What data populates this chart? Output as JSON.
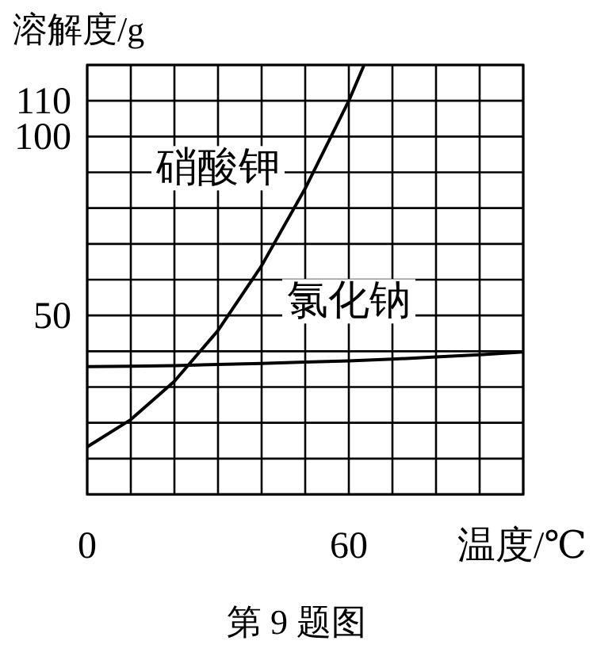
{
  "chart_data": {
    "type": "line",
    "xlabel": "温度/℃",
    "ylabel": "溶解度/g",
    "xlim": [
      0,
      100
    ],
    "ylim": [
      0,
      120
    ],
    "xticks": [
      0,
      {
        "value": 10,
        "label": null
      },
      {
        "value": 20,
        "label": null
      },
      {
        "value": 30,
        "label": null
      },
      {
        "value": 40,
        "label": null
      },
      {
        "value": 50,
        "label": null
      },
      60,
      {
        "value": 70,
        "label": null
      },
      {
        "value": 80,
        "label": null
      },
      {
        "value": 90,
        "label": null
      },
      {
        "value": 100,
        "label": null
      }
    ],
    "yticks": [
      {
        "value": 0,
        "label": null
      },
      {
        "value": 10,
        "label": null
      },
      {
        "value": 20,
        "label": null
      },
      {
        "value": 30,
        "label": null
      },
      {
        "value": 40,
        "label": null
      },
      50,
      {
        "value": 60,
        "label": null
      },
      {
        "value": 70,
        "label": null
      },
      {
        "value": 80,
        "label": null
      },
      {
        "value": 90,
        "label": null
      },
      100,
      110,
      {
        "value": 120,
        "label": null
      }
    ],
    "grid": true,
    "marker": "none",
    "line_style": "solid",
    "series": [
      {
        "name": "硝酸钾",
        "color": "#000000",
        "x": [
          0,
          10,
          20,
          30,
          40,
          50,
          60,
          63.5
        ],
        "values": [
          13.3,
          20.9,
          31.6,
          45.8,
          63.9,
          85.5,
          110,
          120
        ]
      },
      {
        "name": "氯化钠",
        "color": "#000000",
        "x": [
          0,
          10,
          20,
          30,
          40,
          50,
          60,
          70,
          80,
          90,
          100
        ],
        "values": [
          35.7,
          35.8,
          36.0,
          36.3,
          36.6,
          37.0,
          37.3,
          37.8,
          38.4,
          39.0,
          39.8
        ]
      }
    ],
    "annotations": [
      "第 9 题图"
    ]
  }
}
